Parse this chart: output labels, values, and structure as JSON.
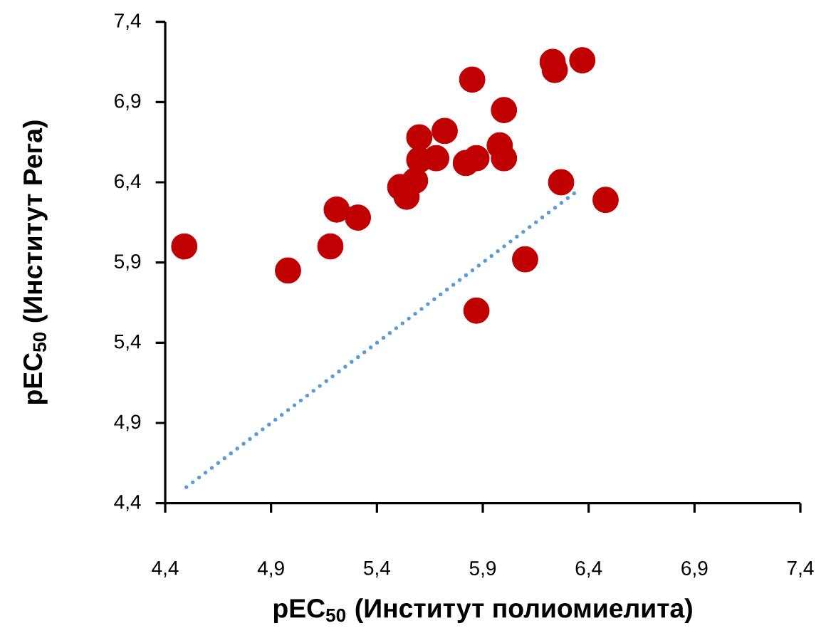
{
  "chart_data": {
    "type": "scatter",
    "xlabel": "pEC$_{50}$ (Институт полиомиелита)",
    "ylabel": "pEC$_{50}$ (Институт Рега)",
    "xlim": [
      4.4,
      7.4
    ],
    "ylim": [
      4.4,
      7.4
    ],
    "xticks": [
      {
        "value": 4.4,
        "label": "4,4"
      },
      {
        "value": 4.9,
        "label": "4,9"
      },
      {
        "value": 5.4,
        "label": "5,4"
      },
      {
        "value": 5.9,
        "label": "5,9"
      },
      {
        "value": 6.4,
        "label": "6,4"
      },
      {
        "value": 6.9,
        "label": "6,9"
      },
      {
        "value": 7.4,
        "label": "7,4"
      }
    ],
    "yticks": [
      {
        "value": 4.4,
        "label": "4,4"
      },
      {
        "value": 4.9,
        "label": "4,9"
      },
      {
        "value": 5.4,
        "label": "5,4"
      },
      {
        "value": 5.9,
        "label": "5,9"
      },
      {
        "value": 6.4,
        "label": "6,4"
      },
      {
        "value": 6.9,
        "label": "6,9"
      },
      {
        "value": 7.4,
        "label": "7,4"
      }
    ],
    "series": [
      {
        "color": "#c00000",
        "marker": "circle",
        "x": [
          4.49,
          4.98,
          5.18,
          5.21,
          5.31,
          5.51,
          5.54,
          5.58,
          5.6,
          5.6,
          5.68,
          5.72,
          5.82,
          5.87,
          5.85,
          5.87,
          5.98,
          6.0,
          6.0,
          6.1,
          6.23,
          6.24,
          6.37,
          6.27,
          6.48
        ],
        "values": [
          6.0,
          5.85,
          6.0,
          6.23,
          6.18,
          6.37,
          6.31,
          6.41,
          6.68,
          6.54,
          6.55,
          6.72,
          6.52,
          6.55,
          7.04,
          5.6,
          6.63,
          6.55,
          6.85,
          5.92,
          7.15,
          7.1,
          7.16,
          6.4,
          6.29
        ]
      },
      {
        "type": "line",
        "color": "#5b9bd5",
        "line_style": "dotted",
        "marker": "none",
        "x": [
          4.5,
          6.35
        ],
        "values": [
          4.5,
          6.35
        ]
      }
    ]
  }
}
